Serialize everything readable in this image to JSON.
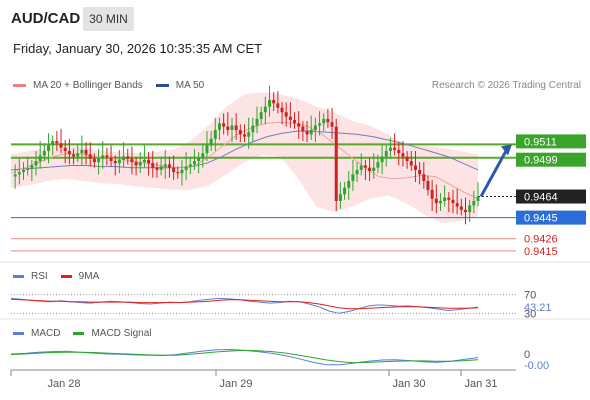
{
  "header": {
    "symbol": "AUD/CAD",
    "timeframe": "30 MIN",
    "datetime": "Friday, January 30, 2026 10:35:35 AM CET",
    "credit": "Research © 2026 Trading Central"
  },
  "main_legend": [
    {
      "label": "MA 20 + Bollinger Bands",
      "color": "#f08080"
    },
    {
      "label": "MA 50",
      "color": "#2c4f8c"
    }
  ],
  "rsi_legend": [
    {
      "label": "RSI",
      "color": "#5b7fd6"
    },
    {
      "label": "9MA",
      "color": "#e0201c"
    }
  ],
  "macd_legend": [
    {
      "label": "MACD",
      "color": "#5b7fd6"
    },
    {
      "label": "MACD Signal",
      "color": "#2fa52f"
    }
  ],
  "colors": {
    "bull": "#2fa52f",
    "bear": "#d02020",
    "band_fill": "#fde3e3",
    "resistance": "#5aa82a",
    "support_line": "#2a6dd9",
    "support_level": "#e88a8a",
    "arrow": "#2d5aa8"
  },
  "chart_data": [
    {
      "type": "candlestick",
      "title": "AUD/CAD",
      "x_labels": [
        "Jan 28",
        "Jan 29",
        "Jan 30",
        "Jan 31"
      ],
      "ylim": [
        0.9405,
        0.956
      ],
      "price_levels": [
        {
          "label": "0.9511",
          "value": 0.9511,
          "kind": "resistance"
        },
        {
          "label": "0.9499",
          "value": 0.9499,
          "kind": "resistance"
        },
        {
          "label": "0.9464",
          "value": 0.9464,
          "kind": "last-price"
        },
        {
          "label": "0.9445",
          "value": 0.9445,
          "kind": "pivot-support"
        },
        {
          "label": "0.9426",
          "value": 0.9426,
          "kind": "support"
        },
        {
          "label": "0.9415",
          "value": 0.9415,
          "kind": "support"
        }
      ],
      "close_path": [
        0.9482,
        0.9484,
        0.9486,
        0.9488,
        0.9489,
        0.9492,
        0.9496,
        0.9501,
        0.9505,
        0.951,
        0.9514,
        0.9512,
        0.9508,
        0.9505,
        0.9502,
        0.95,
        0.9503,
        0.9506,
        0.9502,
        0.9498,
        0.9495,
        0.9498,
        0.9501,
        0.9499,
        0.9496,
        0.9494,
        0.9497,
        0.95,
        0.9498,
        0.9495,
        0.9492,
        0.9495,
        0.9497,
        0.9494,
        0.949,
        0.9488,
        0.9491,
        0.9493,
        0.949,
        0.9486,
        0.9485,
        0.9488,
        0.9491,
        0.9493,
        0.9496,
        0.9499,
        0.9503,
        0.951,
        0.9516,
        0.9524,
        0.953,
        0.9527,
        0.9524,
        0.9528,
        0.9524,
        0.952,
        0.9518,
        0.9522,
        0.9528,
        0.9534,
        0.954,
        0.9545,
        0.9551,
        0.9548,
        0.9544,
        0.954,
        0.9536,
        0.9533,
        0.953,
        0.9527,
        0.9523,
        0.952,
        0.9524,
        0.9528,
        0.953,
        0.9534,
        0.9531,
        0.9527,
        0.946,
        0.9466,
        0.9472,
        0.9478,
        0.9484,
        0.9488,
        0.9492,
        0.949,
        0.9487,
        0.949,
        0.9495,
        0.95,
        0.9505,
        0.9508,
        0.9506,
        0.9503,
        0.95,
        0.9496,
        0.9492,
        0.9488,
        0.9484,
        0.9478,
        0.947,
        0.9462,
        0.9458,
        0.946,
        0.9463,
        0.9461,
        0.9458,
        0.9455,
        0.9452,
        0.945,
        0.9456,
        0.946,
        0.9464
      ],
      "ma20_path": [
        0.9485,
        0.949,
        0.9495,
        0.95,
        0.9503,
        0.9502,
        0.95,
        0.9499,
        0.9497,
        0.9495,
        0.9493,
        0.9491,
        0.949,
        0.9492,
        0.95,
        0.951,
        0.952,
        0.9526,
        0.953,
        0.9531,
        0.953,
        0.9527,
        0.952,
        0.951,
        0.95,
        0.949,
        0.9482,
        0.948,
        0.9481,
        0.9483,
        0.9482,
        0.9475,
        0.9468,
        0.9462
      ],
      "ma50_path": [
        0.9488,
        0.9489,
        0.949,
        0.9491,
        0.9492,
        0.9492,
        0.9491,
        0.9491,
        0.949,
        0.949,
        0.949,
        0.949,
        0.9491,
        0.9494,
        0.95,
        0.9507,
        0.9513,
        0.9518,
        0.9521,
        0.9523,
        0.9523,
        0.9522,
        0.9521,
        0.952,
        0.9518,
        0.9515,
        0.9512,
        0.9508,
        0.9504,
        0.95,
        0.9494,
        0.9488
      ],
      "bb_upper_path": [
        0.9502,
        0.9505,
        0.9508,
        0.951,
        0.9508,
        0.9505,
        0.9504,
        0.9503,
        0.9504,
        0.9506,
        0.9514,
        0.9528,
        0.9545,
        0.9556,
        0.9558,
        0.9556,
        0.9552,
        0.9545,
        0.954,
        0.9532,
        0.9528,
        0.952,
        0.951,
        0.951,
        0.9508,
        0.9505,
        0.9502
      ],
      "bb_lower_path": [
        0.9472,
        0.9474,
        0.9478,
        0.948,
        0.9478,
        0.9476,
        0.9475,
        0.9473,
        0.9472,
        0.947,
        0.947,
        0.9474,
        0.9484,
        0.9495,
        0.9502,
        0.95,
        0.948,
        0.9455,
        0.945,
        0.9455,
        0.9462,
        0.9465,
        0.9458,
        0.9448,
        0.944,
        0.9442,
        0.9446
      ],
      "forecast_target": 0.9511
    },
    {
      "type": "line",
      "title": "RSI",
      "levels": [
        {
          "label": "70",
          "value": 70
        },
        {
          "label": "30",
          "value": 30
        }
      ],
      "last_value_label": "43.21",
      "last_value": 43.21,
      "ylim": [
        20,
        80
      ],
      "series": [
        {
          "name": "RSI",
          "values": [
            62,
            60,
            58,
            56,
            55,
            57,
            55,
            53,
            52,
            54,
            56,
            55,
            53,
            51,
            50,
            52,
            54,
            53,
            55,
            58,
            60,
            62,
            61,
            59,
            56,
            54,
            52,
            53,
            56,
            55,
            50,
            44,
            35,
            30,
            34,
            40,
            46,
            48,
            47,
            45,
            46,
            44,
            42,
            39,
            36,
            38,
            41,
            43
          ]
        },
        {
          "name": "9MA",
          "values": [
            60,
            59,
            58,
            57,
            56,
            56,
            55,
            55,
            54,
            54,
            54,
            54,
            54,
            53,
            53,
            53,
            53,
            53,
            54,
            55,
            56,
            58,
            59,
            59,
            58,
            57,
            56,
            55,
            55,
            55,
            53,
            50,
            46,
            42,
            40,
            40,
            41,
            42,
            43,
            44,
            44,
            44,
            43,
            42,
            41,
            41,
            41,
            42
          ]
        }
      ]
    },
    {
      "type": "line",
      "title": "MACD",
      "levels": [
        {
          "label": "0",
          "value": 0
        }
      ],
      "last_value_label": "-0.00",
      "last_value": -0.0,
      "series": [
        {
          "name": "MACD",
          "values": [
            1.0,
            1.2,
            1.6,
            1.8,
            1.9,
            1.6,
            1.3,
            1.0,
            0.9,
            0.7,
            0.6,
            0.5,
            0.8,
            1.4,
            2.0,
            2.4,
            2.5,
            2.2,
            1.8,
            1.2,
            0.4,
            -0.6,
            -1.8,
            -2.6,
            -2.6,
            -2.0,
            -1.4,
            -1.0,
            -0.9,
            -1.2,
            -1.6,
            -1.8,
            -1.4,
            -0.8,
            -0.2
          ]
        },
        {
          "name": "MACD Signal",
          "values": [
            0.8,
            1.0,
            1.3,
            1.5,
            1.6,
            1.6,
            1.5,
            1.3,
            1.1,
            0.9,
            0.7,
            0.6,
            0.6,
            0.9,
            1.3,
            1.7,
            2.0,
            2.2,
            2.1,
            1.8,
            1.3,
            0.6,
            -0.2,
            -1.0,
            -1.6,
            -1.9,
            -1.8,
            -1.6,
            -1.4,
            -1.3,
            -1.3,
            -1.4,
            -1.4,
            -1.2,
            -0.9
          ]
        }
      ]
    }
  ]
}
